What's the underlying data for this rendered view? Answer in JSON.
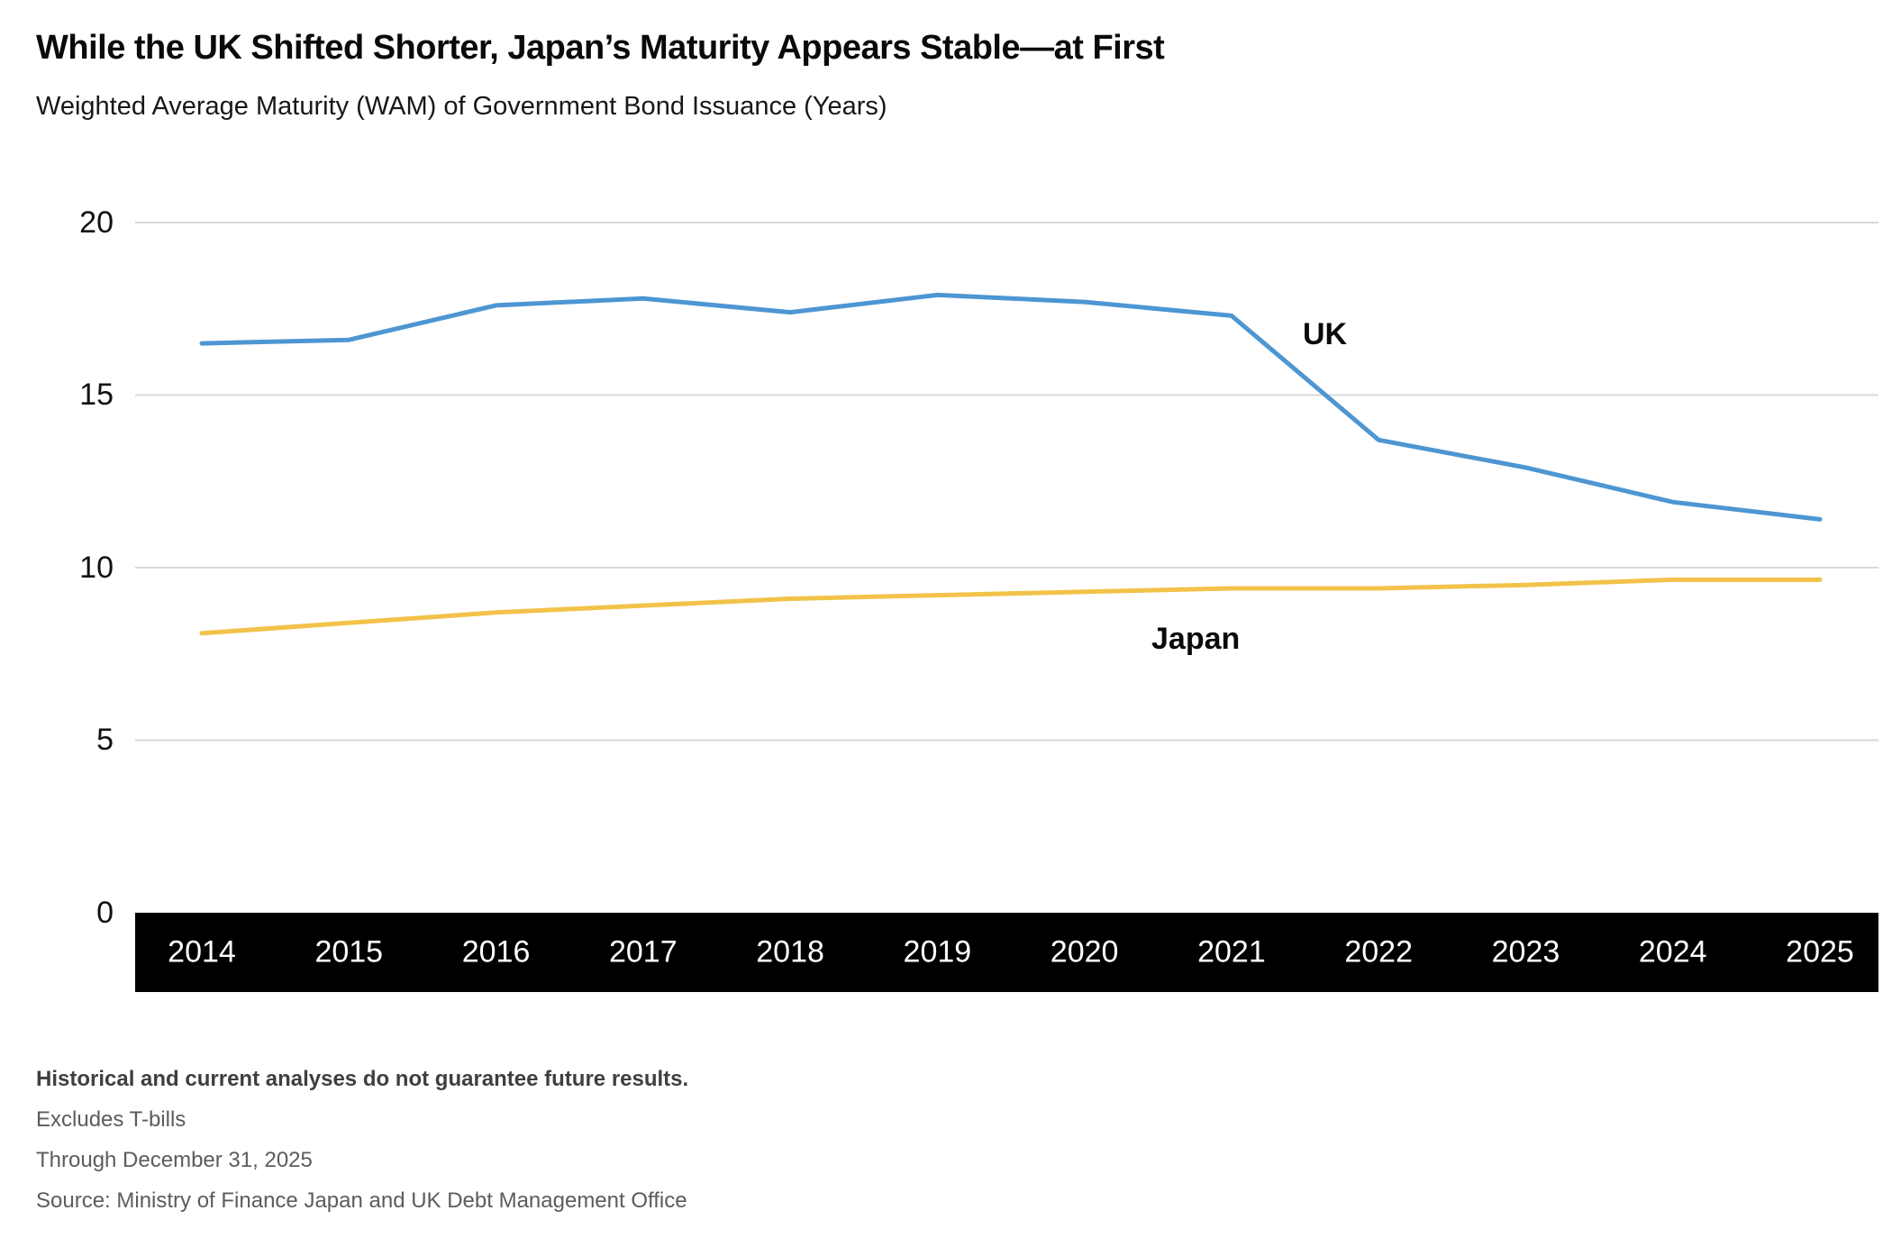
{
  "chart_data": {
    "type": "line",
    "title": "While the UK Shifted Shorter, Japan’s Maturity Appears Stable—at First",
    "subtitle": "Weighted Average Maturity (WAM) of Government Bond Issuance (Years)",
    "x": [
      2014,
      2015,
      2016,
      2017,
      2018,
      2019,
      2020,
      2021,
      2022,
      2023,
      2024,
      2025
    ],
    "series": [
      {
        "name": "UK",
        "color": "#4d96d2",
        "values": [
          16.5,
          16.6,
          17.6,
          17.8,
          17.4,
          17.9,
          17.7,
          17.3,
          13.7,
          12.9,
          11.9,
          11.4
        ]
      },
      {
        "name": "Japan",
        "color": "#f2c249",
        "values": [
          8.1,
          8.4,
          8.7,
          8.9,
          9.1,
          9.2,
          9.3,
          9.4,
          9.4,
          9.5,
          9.65,
          9.65
        ]
      }
    ],
    "ylim": [
      0,
      20
    ],
    "yticks": [
      0,
      5,
      10,
      15,
      20
    ],
    "grid": "horizontal",
    "legend": "inline-labels",
    "axis_band_bg": "#000000",
    "axis_band_text": "#ffffff",
    "gridline_color": "#d9d9d9"
  },
  "footnotes": [
    "Historical and current analyses do not guarantee future results.",
    "Excludes T-bills",
    "Through December 31, 2025",
    "Source: Ministry of Finance Japan and UK Debt Management Office"
  ]
}
